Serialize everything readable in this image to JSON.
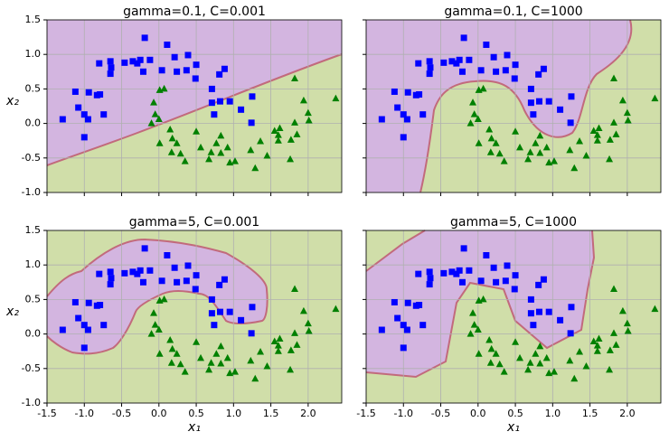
{
  "chart_data": [
    {
      "type": "scatter",
      "title": "gamma=0.1, C=0.001",
      "ylabel": "x₂",
      "xlim": [
        -1.5,
        2.45
      ],
      "ylim": [
        -1,
        1.5
      ],
      "xticks": [
        -1.5,
        {
          "value": -1,
          "label": "-1.0"
        },
        -0.5,
        {
          "value": 0,
          "label": "0.0"
        },
        0.5,
        {
          "value": 1,
          "label": "1.0"
        },
        1.5,
        {
          "value": 2,
          "label": "2.0"
        }
      ],
      "yticks": [
        {
          "value": -1,
          "label": "-1.0"
        },
        -0.5,
        {
          "value": 0,
          "label": "0.0"
        },
        0.5,
        {
          "value": 1,
          "label": "1.0"
        },
        1.5
      ],
      "grid": true,
      "series": [
        {
          "color": "#0000ff",
          "marker": "square",
          "x": [
            -0.19,
            -0.65,
            -0.8,
            -0.64,
            -0.65,
            -0.46,
            -0.35,
            -0.29,
            -0.25,
            -0.21,
            -0.12,
            0.04,
            0.11,
            0.21,
            0.24,
            0.37,
            0.39,
            0.5,
            0.49,
            0.88,
            0.81,
            0.71,
            0.82,
            0.71,
            0.74,
            0.95,
            1.1,
            1.25,
            1.24,
            -1.12,
            -0.94,
            -0.83,
            -0.79,
            -1.08,
            -1.0,
            -1.29,
            -0.95,
            -0.74,
            -1.0
          ],
          "y": [
            1.24,
            0.9,
            0.87,
            0.81,
            0.72,
            0.88,
            0.9,
            0.87,
            0.92,
            0.75,
            0.92,
            0.77,
            1.14,
            0.96,
            0.75,
            0.77,
            0.99,
            0.85,
            0.65,
            0.79,
            0.71,
            0.5,
            0.32,
            0.3,
            0.13,
            0.32,
            0.2,
            0.39,
            0.01,
            0.46,
            0.45,
            0.41,
            0.42,
            0.23,
            0.13,
            0.06,
            0.06,
            0.13,
            -0.2
          ]
        },
        {
          "color": "#008000",
          "marker": "triangle",
          "x": [
            0.07,
            0.01,
            -0.07,
            -0.05,
            -0.1,
            0.0,
            0.15,
            0.18,
            0.01,
            0.24,
            0.17,
            0.29,
            0.35,
            0.67,
            0.7,
            0.77,
            0.83,
            0.83,
            0.92,
            0.95,
            1.02,
            1.23,
            1.36,
            1.29,
            1.45,
            1.55,
            1.6,
            1.62,
            1.6,
            1.77,
            1.85,
            1.82,
            1.82,
            1.94,
            2.0,
            2.01,
            2.37,
            1.76,
            0.5,
            0.56
          ],
          "y": [
            0.5,
            0.48,
            0.3,
            0.13,
            0.0,
            0.06,
            -0.09,
            -0.22,
            -0.29,
            -0.29,
            -0.42,
            -0.44,
            -0.55,
            -0.52,
            -0.42,
            -0.29,
            -0.18,
            -0.43,
            -0.35,
            -0.57,
            -0.55,
            -0.39,
            -0.26,
            -0.65,
            -0.47,
            -0.11,
            -0.17,
            -0.07,
            -0.25,
            -0.24,
            -0.16,
            0.01,
            0.65,
            0.33,
            0.15,
            0.04,
            0.36,
            -0.52,
            -0.12,
            -0.35
          ]
        }
      ]
    },
    {
      "type": "scatter",
      "title": "gamma=0.1, C=1000",
      "xlim": [
        -1.5,
        2.45
      ],
      "ylim": [
        -1,
        1.5
      ],
      "xticks": [
        -1.5,
        {
          "value": -1,
          "label": "-1.0"
        },
        -0.5,
        {
          "value": 0,
          "label": "0.0"
        },
        0.5,
        {
          "value": 1,
          "label": "1.0"
        },
        1.5,
        {
          "value": 2,
          "label": "2.0"
        }
      ],
      "yticks": [
        {
          "value": -1,
          "label": "-1.0"
        },
        -0.5,
        {
          "value": 0,
          "label": "0.0"
        },
        0.5,
        {
          "value": 1,
          "label": "1.0"
        },
        1.5
      ],
      "grid": true,
      "series": [
        {
          "color": "#0000ff",
          "marker": "square",
          "x": [
            -0.19,
            -0.65,
            -0.8,
            -0.64,
            -0.65,
            -0.46,
            -0.35,
            -0.29,
            -0.25,
            -0.21,
            -0.12,
            0.04,
            0.11,
            0.21,
            0.24,
            0.37,
            0.39,
            0.5,
            0.49,
            0.88,
            0.81,
            0.71,
            0.82,
            0.71,
            0.74,
            0.95,
            1.1,
            1.25,
            1.24,
            -1.12,
            -0.94,
            -0.83,
            -0.79,
            -1.08,
            -1.0,
            -1.29,
            -0.95,
            -0.74,
            -1.0
          ],
          "y": [
            1.24,
            0.9,
            0.87,
            0.81,
            0.72,
            0.88,
            0.9,
            0.87,
            0.92,
            0.75,
            0.92,
            0.77,
            1.14,
            0.96,
            0.75,
            0.77,
            0.99,
            0.85,
            0.65,
            0.79,
            0.71,
            0.5,
            0.32,
            0.3,
            0.13,
            0.32,
            0.2,
            0.39,
            0.01,
            0.46,
            0.45,
            0.41,
            0.42,
            0.23,
            0.13,
            0.06,
            0.06,
            0.13,
            -0.2
          ]
        },
        {
          "color": "#008000",
          "marker": "triangle",
          "x": [
            0.07,
            0.01,
            -0.07,
            -0.05,
            -0.1,
            0.0,
            0.15,
            0.18,
            0.01,
            0.24,
            0.17,
            0.29,
            0.35,
            0.67,
            0.7,
            0.77,
            0.83,
            0.83,
            0.92,
            0.95,
            1.02,
            1.23,
            1.36,
            1.29,
            1.45,
            1.55,
            1.6,
            1.62,
            1.6,
            1.77,
            1.85,
            1.82,
            1.82,
            1.94,
            2.0,
            2.01,
            2.37,
            1.76,
            0.5,
            0.56
          ],
          "y": [
            0.5,
            0.48,
            0.3,
            0.13,
            0.0,
            0.06,
            -0.09,
            -0.22,
            -0.29,
            -0.29,
            -0.42,
            -0.44,
            -0.55,
            -0.52,
            -0.42,
            -0.29,
            -0.18,
            -0.43,
            -0.35,
            -0.57,
            -0.55,
            -0.39,
            -0.26,
            -0.65,
            -0.47,
            -0.11,
            -0.17,
            -0.07,
            -0.25,
            -0.24,
            -0.16,
            0.01,
            0.65,
            0.33,
            0.15,
            0.04,
            0.36,
            -0.52,
            -0.12,
            -0.35
          ]
        }
      ]
    },
    {
      "type": "scatter",
      "title": "gamma=5, C=0.001",
      "xlabel": "x₁",
      "ylabel": "x₂",
      "xlim": [
        -1.5,
        2.45
      ],
      "ylim": [
        -1,
        1.5
      ],
      "xticks": [
        -1.5,
        {
          "value": -1,
          "label": "-1.0"
        },
        -0.5,
        {
          "value": 0,
          "label": "0.0"
        },
        0.5,
        {
          "value": 1,
          "label": "1.0"
        },
        1.5,
        {
          "value": 2,
          "label": "2.0"
        }
      ],
      "yticks": [
        {
          "value": -1,
          "label": "-1.0"
        },
        -0.5,
        {
          "value": 0,
          "label": "0.0"
        },
        0.5,
        {
          "value": 1,
          "label": "1.0"
        },
        1.5
      ],
      "grid": true,
      "series": [
        {
          "color": "#0000ff",
          "marker": "square",
          "x": [
            -0.19,
            -0.65,
            -0.8,
            -0.64,
            -0.65,
            -0.46,
            -0.35,
            -0.29,
            -0.25,
            -0.21,
            -0.12,
            0.04,
            0.11,
            0.21,
            0.24,
            0.37,
            0.39,
            0.5,
            0.49,
            0.88,
            0.81,
            0.71,
            0.82,
            0.71,
            0.74,
            0.95,
            1.1,
            1.25,
            1.24,
            -1.12,
            -0.94,
            -0.83,
            -0.79,
            -1.08,
            -1.0,
            -1.29,
            -0.95,
            -0.74,
            -1.0
          ],
          "y": [
            1.24,
            0.9,
            0.87,
            0.81,
            0.72,
            0.88,
            0.9,
            0.87,
            0.92,
            0.75,
            0.92,
            0.77,
            1.14,
            0.96,
            0.75,
            0.77,
            0.99,
            0.85,
            0.65,
            0.79,
            0.71,
            0.5,
            0.32,
            0.3,
            0.13,
            0.32,
            0.2,
            0.39,
            0.01,
            0.46,
            0.45,
            0.41,
            0.42,
            0.23,
            0.13,
            0.06,
            0.06,
            0.13,
            -0.2
          ]
        },
        {
          "color": "#008000",
          "marker": "triangle",
          "x": [
            0.07,
            0.01,
            -0.07,
            -0.05,
            -0.1,
            0.0,
            0.15,
            0.18,
            0.01,
            0.24,
            0.17,
            0.29,
            0.35,
            0.67,
            0.7,
            0.77,
            0.83,
            0.83,
            0.92,
            0.95,
            1.02,
            1.23,
            1.36,
            1.29,
            1.45,
            1.55,
            1.6,
            1.62,
            1.6,
            1.77,
            1.85,
            1.82,
            1.82,
            1.94,
            2.0,
            2.01,
            2.37,
            1.76,
            0.5,
            0.56
          ],
          "y": [
            0.5,
            0.48,
            0.3,
            0.13,
            0.0,
            0.06,
            -0.09,
            -0.22,
            -0.29,
            -0.29,
            -0.42,
            -0.44,
            -0.55,
            -0.52,
            -0.42,
            -0.29,
            -0.18,
            -0.43,
            -0.35,
            -0.57,
            -0.55,
            -0.39,
            -0.26,
            -0.65,
            -0.47,
            -0.11,
            -0.17,
            -0.07,
            -0.25,
            -0.24,
            -0.16,
            0.01,
            0.65,
            0.33,
            0.15,
            0.04,
            0.36,
            -0.52,
            -0.12,
            -0.35
          ]
        }
      ]
    },
    {
      "type": "scatter",
      "title": "gamma=5, C=1000",
      "xlabel": "x₁",
      "xlim": [
        -1.5,
        2.45
      ],
      "ylim": [
        -1,
        1.5
      ],
      "xticks": [
        -1.5,
        {
          "value": -1,
          "label": "-1.0"
        },
        -0.5,
        {
          "value": 0,
          "label": "0.0"
        },
        0.5,
        {
          "value": 1,
          "label": "1.0"
        },
        1.5,
        {
          "value": 2,
          "label": "2.0"
        }
      ],
      "yticks": [
        {
          "value": -1,
          "label": "-1.0"
        },
        -0.5,
        {
          "value": 0,
          "label": "0.0"
        },
        0.5,
        {
          "value": 1,
          "label": "1.0"
        },
        1.5
      ],
      "grid": true,
      "series": [
        {
          "color": "#0000ff",
          "marker": "square",
          "x": [
            -0.19,
            -0.65,
            -0.8,
            -0.64,
            -0.65,
            -0.46,
            -0.35,
            -0.29,
            -0.25,
            -0.21,
            -0.12,
            0.04,
            0.11,
            0.21,
            0.24,
            0.37,
            0.39,
            0.5,
            0.49,
            0.88,
            0.81,
            0.71,
            0.82,
            0.71,
            0.74,
            0.95,
            1.1,
            1.25,
            1.24,
            -1.12,
            -0.94,
            -0.83,
            -0.79,
            -1.08,
            -1.0,
            -1.29,
            -0.95,
            -0.74,
            -1.0
          ],
          "y": [
            1.24,
            0.9,
            0.87,
            0.81,
            0.72,
            0.88,
            0.9,
            0.87,
            0.92,
            0.75,
            0.92,
            0.77,
            1.14,
            0.96,
            0.75,
            0.77,
            0.99,
            0.85,
            0.65,
            0.79,
            0.71,
            0.5,
            0.32,
            0.3,
            0.13,
            0.32,
            0.2,
            0.39,
            0.01,
            0.46,
            0.45,
            0.41,
            0.42,
            0.23,
            0.13,
            0.06,
            0.06,
            0.13,
            -0.2
          ]
        },
        {
          "color": "#008000",
          "marker": "triangle",
          "x": [
            0.07,
            0.01,
            -0.07,
            -0.05,
            -0.1,
            0.0,
            0.15,
            0.18,
            0.01,
            0.24,
            0.17,
            0.29,
            0.35,
            0.67,
            0.7,
            0.77,
            0.83,
            0.83,
            0.92,
            0.95,
            1.02,
            1.23,
            1.36,
            1.29,
            1.45,
            1.55,
            1.6,
            1.62,
            1.6,
            1.77,
            1.85,
            1.82,
            1.82,
            1.94,
            2.0,
            2.01,
            2.37,
            1.76,
            0.5,
            0.56
          ],
          "y": [
            0.5,
            0.48,
            0.3,
            0.13,
            0.0,
            0.06,
            -0.09,
            -0.22,
            -0.29,
            -0.29,
            -0.42,
            -0.44,
            -0.55,
            -0.52,
            -0.42,
            -0.29,
            -0.18,
            -0.43,
            -0.35,
            -0.57,
            -0.55,
            -0.39,
            -0.26,
            -0.65,
            -0.47,
            -0.11,
            -0.17,
            -0.07,
            -0.25,
            -0.24,
            -0.16,
            0.01,
            0.65,
            0.33,
            0.15,
            0.04,
            0.36,
            -0.52,
            -0.12,
            -0.35
          ]
        }
      ]
    }
  ]
}
